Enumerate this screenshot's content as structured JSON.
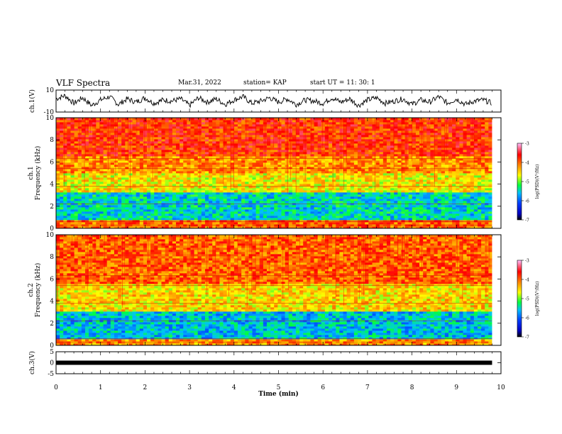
{
  "header": {
    "title": "VLF Spectra",
    "date": "Mar.31, 2022",
    "station": "station= KAP",
    "start_ut": "start  UT =   11: 30: 1"
  },
  "chart_data": [
    {
      "type": "line",
      "panel": "ch1-waveform",
      "ylabel": "ch.1(V)",
      "ylim": [
        -10,
        10
      ],
      "y_ticks": [
        "10",
        "-10"
      ],
      "x_range": [
        0,
        10
      ],
      "data_end_min": 9.8,
      "series": [
        {
          "color": "#000000",
          "x": [
            0.0,
            0.2,
            0.4,
            0.6,
            0.8,
            1.0,
            1.2,
            1.4,
            1.6,
            1.8,
            2.0,
            2.2,
            2.4,
            2.6,
            2.8,
            3.0,
            3.2,
            3.4,
            3.6,
            3.8,
            4.0,
            4.2,
            4.4,
            4.6,
            4.8,
            5.0,
            5.2,
            5.4,
            5.6,
            5.8,
            6.0,
            6.2,
            6.4,
            6.6,
            6.8,
            7.0,
            7.2,
            7.4,
            7.6,
            7.8,
            8.0,
            8.2,
            8.4,
            8.6,
            8.8,
            9.0,
            9.2,
            9.4,
            9.6,
            9.8
          ],
          "y": [
            2,
            5,
            -2,
            3,
            -4,
            1,
            4,
            -3,
            2,
            -1,
            3,
            -2,
            1,
            0,
            2,
            -4,
            3,
            -1,
            2,
            -3,
            1,
            4,
            -2,
            0,
            3,
            -1,
            2,
            -3,
            1,
            0,
            -2,
            3,
            -1,
            2,
            -4,
            1,
            3,
            -2,
            0,
            2,
            -3,
            1,
            -1,
            4,
            -2,
            2,
            -3,
            0,
            1,
            -2
          ]
        }
      ]
    },
    {
      "type": "heatmap",
      "panel": "ch1-spectrogram",
      "ylabel_line1": "ch.1",
      "ylabel_line2": "Frequency (kHz)",
      "ylim": [
        0,
        10
      ],
      "y_ticks": [
        "0",
        "2",
        "4",
        "6",
        "8",
        "10"
      ],
      "x_range": [
        0,
        10
      ],
      "data_end_min": 9.8,
      "bands": [
        {
          "from": 0,
          "to": 0.8,
          "level": -4.0
        },
        {
          "from": 0.8,
          "to": 3.2,
          "level": -5.5
        },
        {
          "from": 3.2,
          "to": 5.0,
          "level": -4.6
        },
        {
          "from": 5.0,
          "to": 6.5,
          "level": -4.2
        },
        {
          "from": 6.5,
          "to": 10,
          "level": -3.8
        }
      ],
      "colorbar": {
        "label": "log(PSD)(V²/Hz)",
        "range": [
          -7,
          -3
        ],
        "ticks": [
          "-3",
          "-4",
          "-5",
          "-6",
          "-7"
        ]
      }
    },
    {
      "type": "heatmap",
      "panel": "ch2-spectrogram",
      "ylabel_line1": "ch.2",
      "ylabel_line2": "Frequency (kHz)",
      "ylim": [
        0,
        10
      ],
      "y_ticks": [
        "0",
        "2",
        "4",
        "6",
        "8",
        "10"
      ],
      "x_range": [
        0,
        10
      ],
      "data_end_min": 9.8,
      "bands": [
        {
          "from": 0,
          "to": 0.5,
          "level": -4.2
        },
        {
          "from": 0.5,
          "to": 3.0,
          "level": -5.6
        },
        {
          "from": 3.0,
          "to": 5.5,
          "level": -4.5
        },
        {
          "from": 5.5,
          "to": 10,
          "level": -4.0
        }
      ],
      "colorbar": {
        "label": "log(PSD)(V²/Hz)",
        "range": [
          -7,
          -3
        ],
        "ticks": [
          "-3",
          "-4",
          "-5",
          "-6",
          "-7"
        ]
      }
    },
    {
      "type": "line",
      "panel": "ch3-waveform",
      "ylabel": "ch.3(V)",
      "ylim": [
        -5,
        5
      ],
      "y_ticks": [
        "5",
        "0",
        "-5"
      ],
      "x_range": [
        0,
        10
      ],
      "data_end_min": 9.8,
      "series": [
        {
          "color": "#000000",
          "x": [
            0,
            9.8
          ],
          "y": [
            0,
            0
          ]
        }
      ]
    }
  ],
  "xaxis": {
    "xlabel": "Time (min)",
    "ticks": [
      "0",
      "1",
      "2",
      "3",
      "4",
      "5",
      "6",
      "7",
      "8",
      "9",
      "10"
    ]
  },
  "colors": {
    "low": "#0000ff",
    "mid_low": "#00ff00",
    "mid": "#ffff00",
    "mid_high": "#ff8000",
    "high": "#ff0000",
    "peak": "#ffffff"
  }
}
